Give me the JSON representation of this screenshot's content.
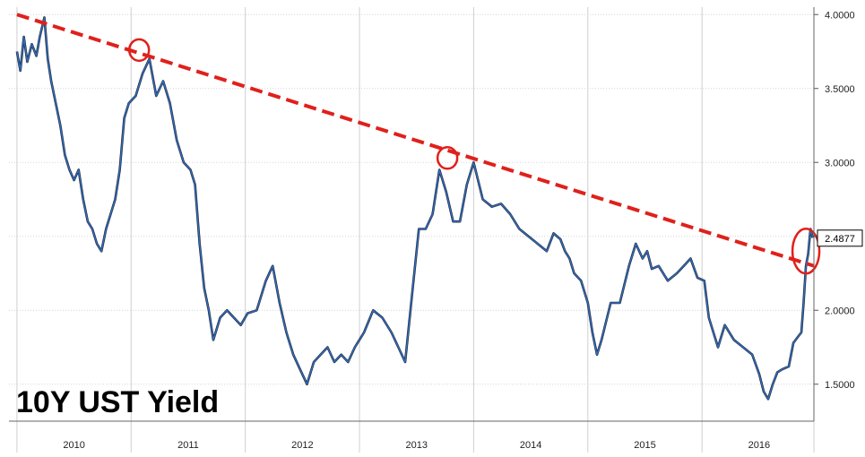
{
  "chart_data": {
    "type": "line",
    "title": "10Y UST Yield",
    "xlabel": "",
    "ylabel": "",
    "ylim": [
      1.25,
      4.05
    ],
    "xlim": [
      2009.93,
      2016.98
    ],
    "y_ticks": [
      "1.5000",
      "2.0000",
      "2.5000",
      "3.0000",
      "3.5000",
      "4.0000"
    ],
    "x_labels": [
      "2010",
      "2011",
      "2012",
      "2013",
      "2014",
      "2015",
      "2016"
    ],
    "last_value_label": "2.4877",
    "grid": true,
    "series": [
      {
        "x": [
          2010.0,
          2010.03,
          2010.06,
          2010.09,
          2010.13,
          2010.17,
          2010.2,
          2010.24,
          2010.27,
          2010.3,
          2010.34,
          2010.38,
          2010.42,
          2010.46,
          2010.5,
          2010.54,
          2010.58,
          2010.62,
          2010.66,
          2010.7,
          2010.74,
          2010.78,
          2010.82,
          2010.86,
          2010.9,
          2010.94,
          2010.98,
          2011.04,
          2011.1,
          2011.16,
          2011.22,
          2011.28,
          2011.34,
          2011.4,
          2011.46,
          2011.52,
          2011.56,
          2011.6,
          2011.64,
          2011.68,
          2011.72,
          2011.78,
          2011.84,
          2011.9,
          2011.96,
          2012.02,
          2012.1,
          2012.18,
          2012.24,
          2012.3,
          2012.36,
          2012.42,
          2012.48,
          2012.54,
          2012.6,
          2012.66,
          2012.72,
          2012.78,
          2012.84,
          2012.9,
          2012.96,
          2013.04,
          2013.12,
          2013.2,
          2013.28,
          2013.34,
          2013.4,
          2013.46,
          2013.52,
          2013.58,
          2013.64,
          2013.7,
          2013.76,
          2013.82,
          2013.88,
          2013.94,
          2014.0,
          2014.08,
          2014.16,
          2014.24,
          2014.32,
          2014.4,
          2014.48,
          2014.56,
          2014.64,
          2014.7,
          2014.76,
          2014.8,
          2014.84,
          2014.88,
          2014.94,
          2015.0,
          2015.04,
          2015.08,
          2015.12,
          2015.2,
          2015.28,
          2015.36,
          2015.42,
          2015.48,
          2015.52,
          2015.56,
          2015.62,
          2015.7,
          2015.78,
          2015.84,
          2015.9,
          2015.96,
          2016.02,
          2016.06,
          2016.1,
          2016.14,
          2016.2,
          2016.28,
          2016.36,
          2016.44,
          2016.5,
          2016.54,
          2016.58,
          2016.62,
          2016.66,
          2016.7,
          2016.76,
          2016.8,
          2016.84,
          2016.87,
          2016.89,
          2016.91,
          2016.93,
          2016.95,
          2016.97
        ],
        "values": [
          3.75,
          3.62,
          3.85,
          3.68,
          3.8,
          3.72,
          3.85,
          3.98,
          3.7,
          3.55,
          3.4,
          3.25,
          3.05,
          2.95,
          2.88,
          2.95,
          2.75,
          2.6,
          2.55,
          2.45,
          2.4,
          2.55,
          2.65,
          2.75,
          2.95,
          3.3,
          3.4,
          3.45,
          3.6,
          3.7,
          3.45,
          3.55,
          3.4,
          3.15,
          3.0,
          2.95,
          2.85,
          2.45,
          2.15,
          2.0,
          1.8,
          1.95,
          2.0,
          1.95,
          1.9,
          1.98,
          2.0,
          2.2,
          2.3,
          2.05,
          1.85,
          1.7,
          1.6,
          1.5,
          1.65,
          1.7,
          1.75,
          1.65,
          1.7,
          1.65,
          1.75,
          1.85,
          2.0,
          1.95,
          1.85,
          1.75,
          1.65,
          2.1,
          2.55,
          2.55,
          2.65,
          2.95,
          2.8,
          2.6,
          2.6,
          2.85,
          3.0,
          2.75,
          2.7,
          2.72,
          2.65,
          2.55,
          2.5,
          2.45,
          2.4,
          2.52,
          2.48,
          2.4,
          2.35,
          2.25,
          2.2,
          2.05,
          1.85,
          1.7,
          1.8,
          2.05,
          2.05,
          2.3,
          2.45,
          2.35,
          2.4,
          2.28,
          2.3,
          2.2,
          2.25,
          2.3,
          2.35,
          2.22,
          2.2,
          1.95,
          1.85,
          1.75,
          1.9,
          1.8,
          1.75,
          1.7,
          1.57,
          1.45,
          1.4,
          1.5,
          1.58,
          1.6,
          1.62,
          1.78,
          1.82,
          1.85,
          2.05,
          2.3,
          2.38,
          2.55,
          2.49
        ]
      }
    ],
    "trendline": {
      "x": [
        2010.0,
        2016.98
      ],
      "values": [
        4.0,
        2.3
      ]
    },
    "highlight_circles": [
      {
        "x": 2011.07,
        "value": 3.76
      },
      {
        "x": 2013.77,
        "value": 3.03
      },
      {
        "x": 2016.91,
        "value": 2.4
      }
    ]
  }
}
